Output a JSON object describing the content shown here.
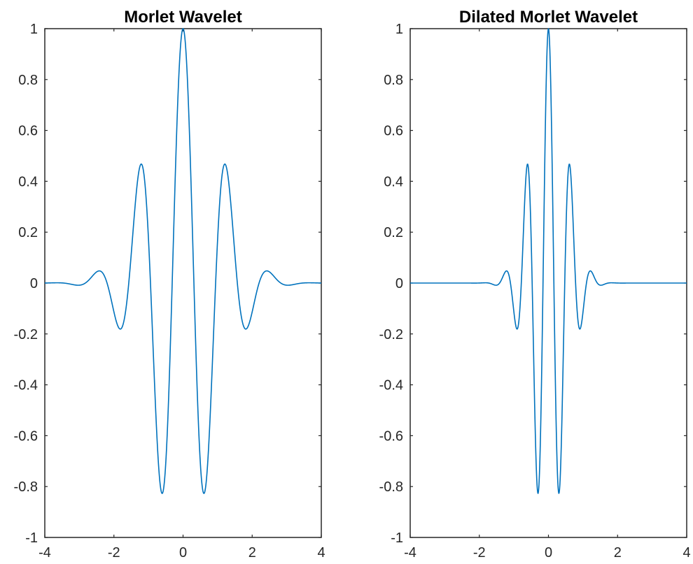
{
  "chart_data": [
    {
      "type": "line",
      "title": "Morlet Wavelet",
      "xlabel": "",
      "ylabel": "",
      "xlim": [
        -4,
        4
      ],
      "ylim": [
        -1,
        1
      ],
      "xticks": [
        "-4",
        "-2",
        "0",
        "2",
        "4"
      ],
      "yticks": [
        "-1",
        "-0.8",
        "-0.6",
        "-0.4",
        "-0.2",
        "0",
        "0.2",
        "0.4",
        "0.6",
        "0.8",
        "1"
      ],
      "grid": false,
      "series": [
        {
          "color": "#0072BD",
          "function": "exp(-x^2/2)*cos(5*x)",
          "x": [
            -4,
            -3,
            -2.5,
            -2.4,
            -1.8,
            -1.2,
            -0.6,
            0,
            0.6,
            1.2,
            1.8,
            2.4,
            2.5,
            3,
            4
          ],
          "y": [
            0,
            -0.01,
            0.04,
            0.05,
            -0.18,
            0.47,
            -0.83,
            1,
            -0.83,
            0.47,
            -0.18,
            0.05,
            0.04,
            -0.01,
            0
          ]
        }
      ]
    },
    {
      "type": "line",
      "title": "Dilated Morlet Wavelet",
      "xlabel": "",
      "ylabel": "",
      "xlim": [
        -4,
        4
      ],
      "ylim": [
        -1,
        1
      ],
      "xticks": [
        "-4",
        "-2",
        "0",
        "2",
        "4"
      ],
      "yticks": [
        "-1",
        "-0.8",
        "-0.6",
        "-0.4",
        "-0.2",
        "0",
        "0.2",
        "0.4",
        "0.6",
        "0.8",
        "1"
      ],
      "grid": false,
      "series": [
        {
          "color": "#0072BD",
          "function": "exp(-2*x^2)*cos(10*x)",
          "x": [
            -4,
            -1.5,
            -1.2,
            -0.9,
            -0.6,
            -0.3,
            0,
            0.3,
            0.6,
            0.9,
            1.2,
            1.5,
            4
          ],
          "y": [
            0,
            -0.01,
            0.05,
            -0.18,
            0.47,
            -0.83,
            1,
            -0.83,
            0.47,
            -0.18,
            0.05,
            -0.01,
            0
          ]
        }
      ]
    }
  ]
}
